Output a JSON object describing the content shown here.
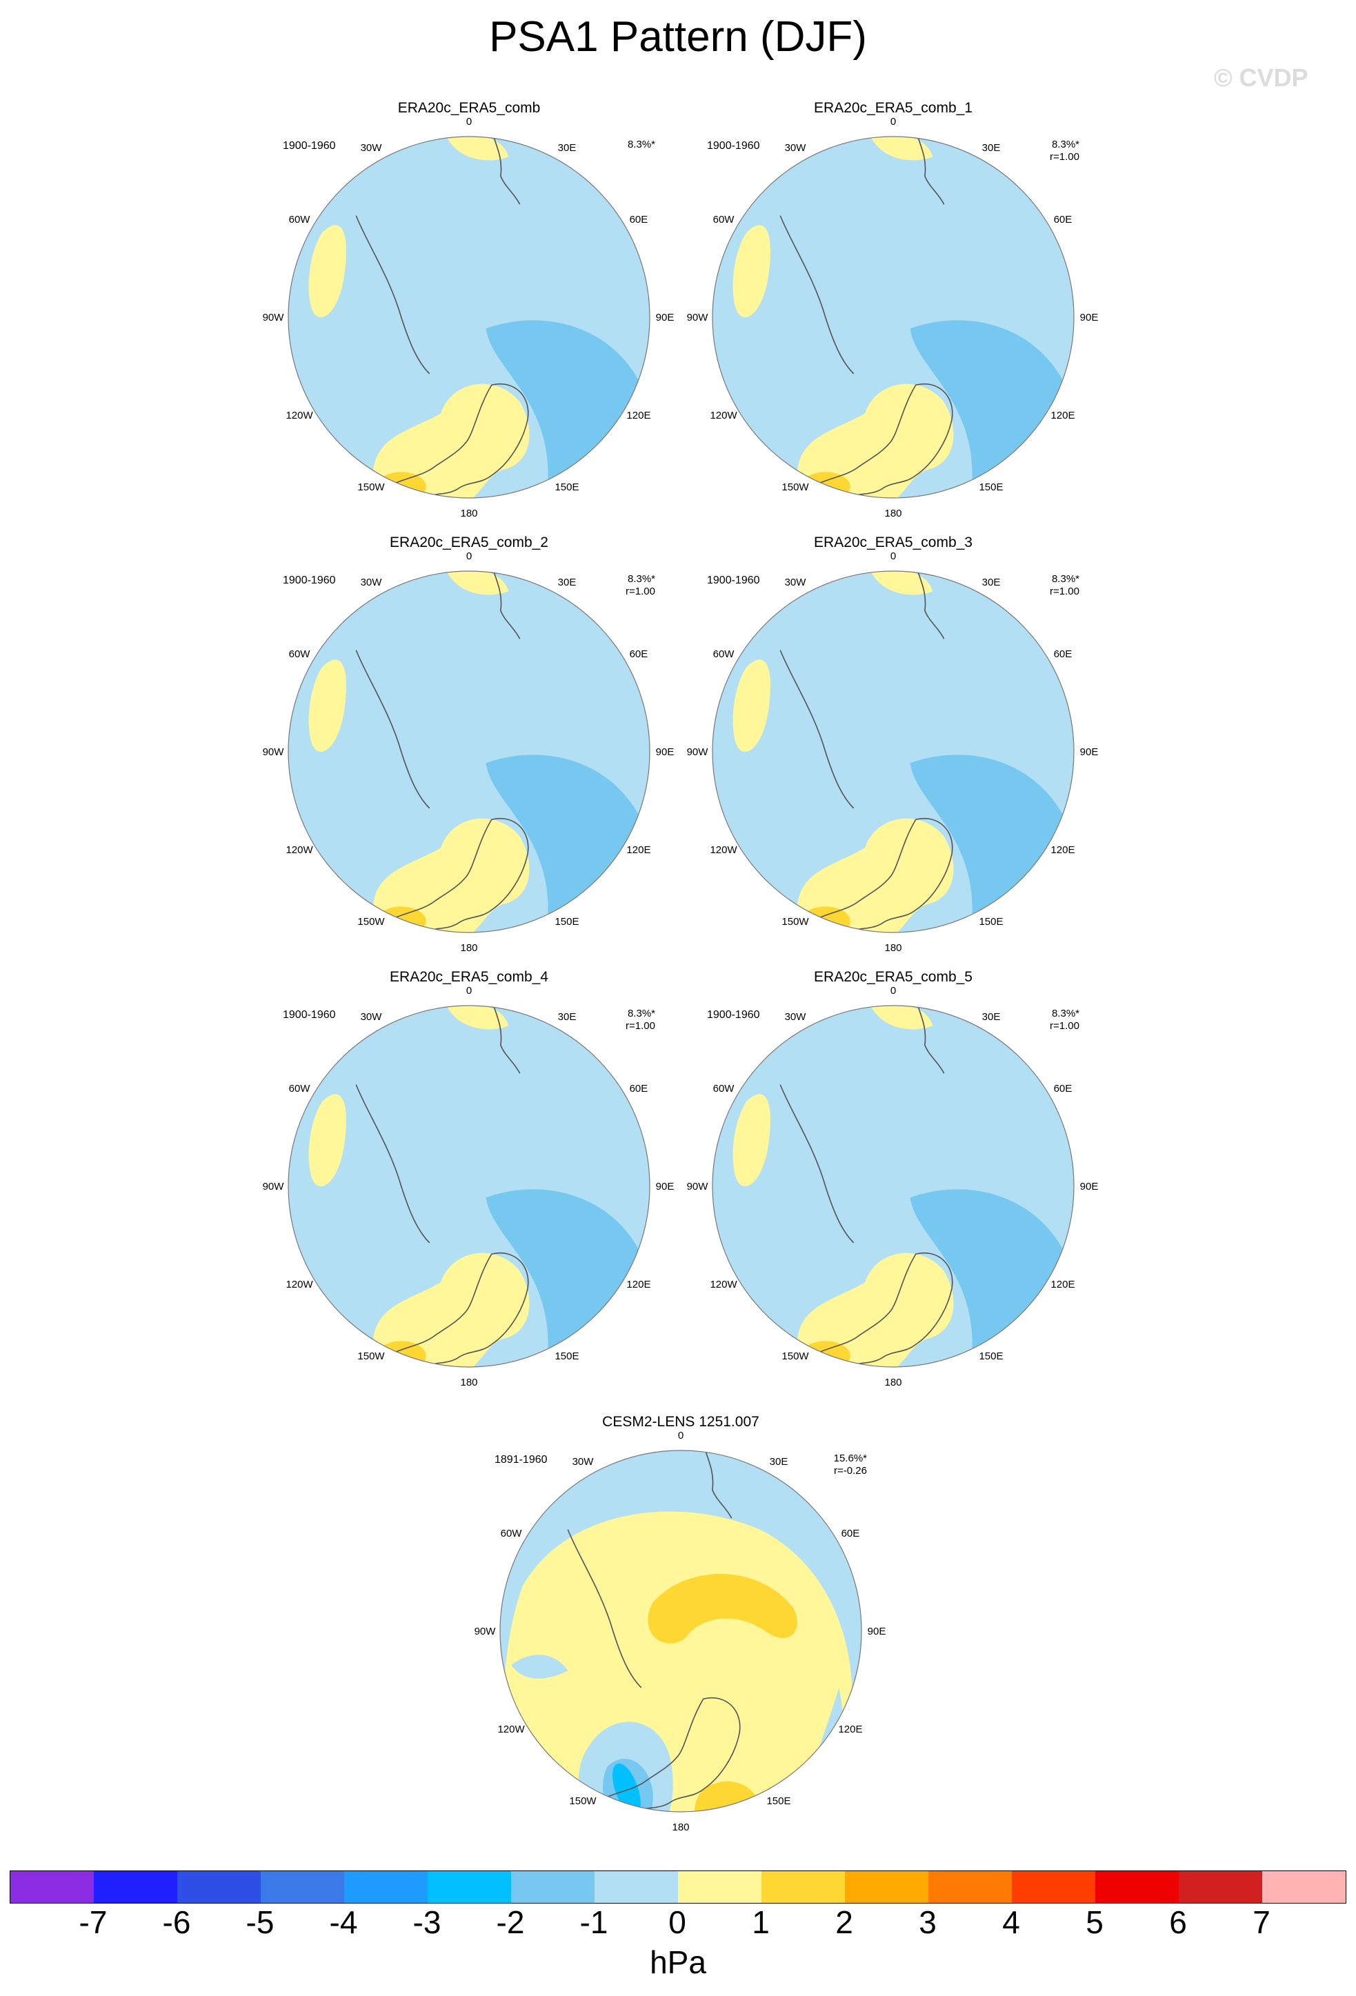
{
  "title": "PSA1 Pattern (DJF)",
  "watermark": "© CVDP",
  "panels": [
    {
      "name": "ERA20c_ERA5_comb",
      "period": "1900-1960",
      "pct": "8.3%*",
      "corr": ""
    },
    {
      "name": "ERA20c_ERA5_comb_1",
      "period": "1900-1960",
      "pct": "8.3%*",
      "corr": "r=1.00"
    },
    {
      "name": "ERA20c_ERA5_comb_2",
      "period": "1900-1960",
      "pct": "8.3%*",
      "corr": "r=1.00"
    },
    {
      "name": "ERA20c_ERA5_comb_3",
      "period": "1900-1960",
      "pct": "8.3%*",
      "corr": "r=1.00"
    },
    {
      "name": "ERA20c_ERA5_comb_4",
      "period": "1900-1960",
      "pct": "8.3%*",
      "corr": "r=1.00"
    },
    {
      "name": "ERA20c_ERA5_comb_5",
      "period": "1900-1960",
      "pct": "8.3%*",
      "corr": "r=1.00"
    },
    {
      "name": "CESM2-LENS 1251.007",
      "period": "1891-1960",
      "pct": "15.6%*",
      "corr": "r=-0.26"
    }
  ],
  "longitude_labels": [
    "0",
    "30E",
    "60E",
    "90E",
    "120E",
    "150E",
    "180",
    "150W",
    "120W",
    "90W",
    "60W",
    "30W"
  ],
  "colorbar": {
    "colors": [
      "#8b2be2",
      "#1f1fff",
      "#2e4fe6",
      "#3a7ae8",
      "#1e9bff",
      "#00c0ff",
      "#76c8f0",
      "#b2dff4",
      "#fff799",
      "#ffd733",
      "#ffaa00",
      "#ff7a00",
      "#ff3d00",
      "#ee0000",
      "#d02020",
      "#ffb3b3"
    ],
    "labels": [
      "-7",
      "-6",
      "-5",
      "-4",
      "-3",
      "-2",
      "-1",
      "0",
      "1",
      "2",
      "3",
      "4",
      "5",
      "6",
      "7"
    ],
    "units": "hPa"
  }
}
